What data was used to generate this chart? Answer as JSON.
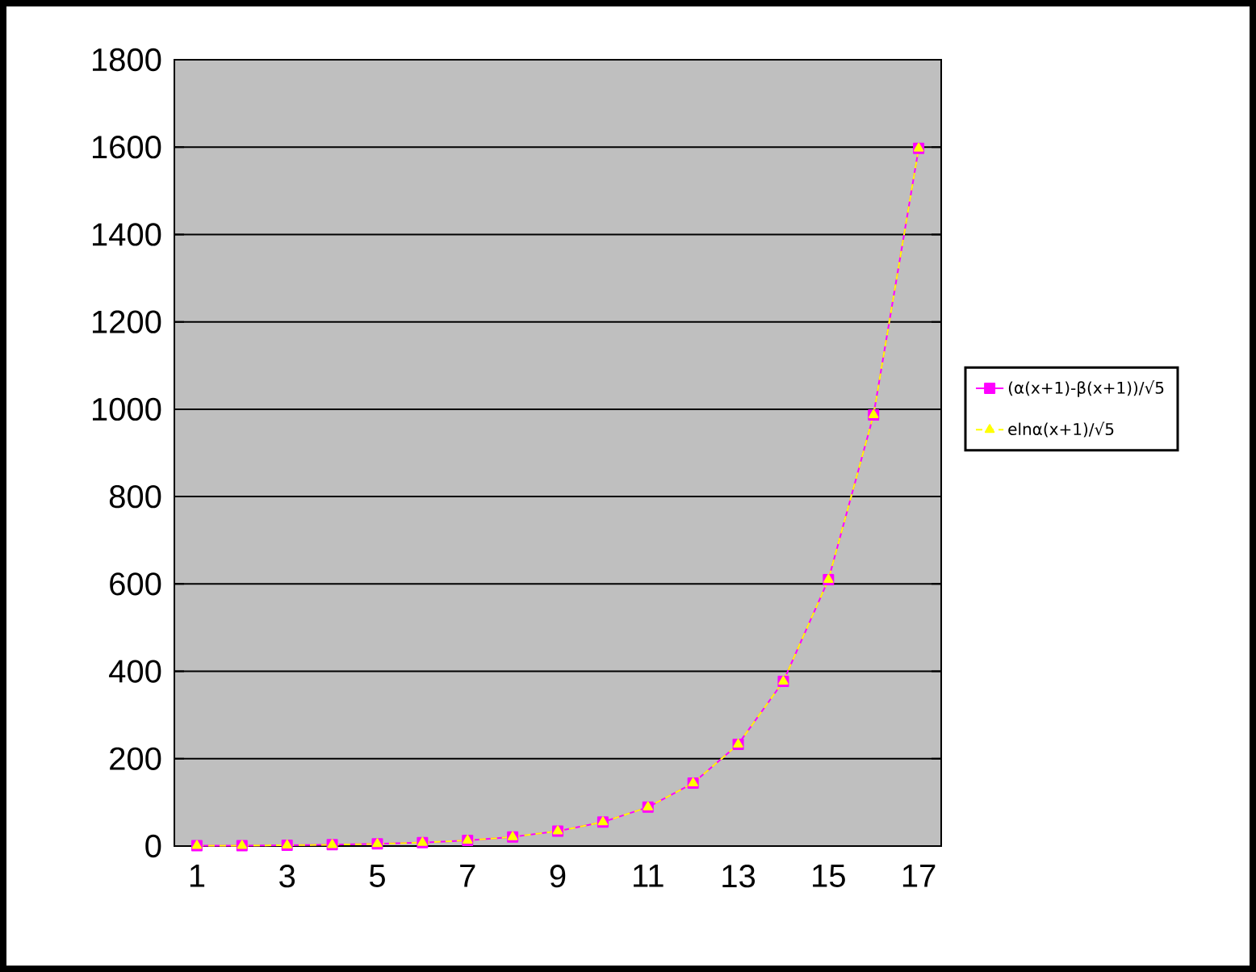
{
  "chart_data": {
    "type": "line",
    "categories": [
      "1",
      null,
      "3",
      null,
      "5",
      null,
      "7",
      null,
      "9",
      null,
      "11",
      null,
      "13",
      null,
      "15",
      null,
      "17"
    ],
    "series": [
      {
        "name": "(α(x+1)-β(x+1))/√5",
        "color": "#ff00ff",
        "marker": "square",
        "line_style": "solid",
        "values": [
          1,
          1,
          2,
          3,
          5,
          8,
          13,
          21,
          34,
          55,
          89,
          144,
          233,
          377,
          610,
          987,
          1597
        ]
      },
      {
        "name": "elnα(x+1)/√5",
        "color": "#ffff00",
        "marker": "triangle",
        "line_style": "dashed",
        "values": [
          1,
          1,
          2,
          3,
          5,
          8,
          13,
          21,
          34,
          55,
          89,
          144,
          233,
          377,
          610,
          987,
          1597
        ]
      }
    ],
    "ylim": [
      0,
      1800
    ],
    "yticks": [
      0,
      200,
      400,
      600,
      800,
      1000,
      1200,
      1400,
      1600,
      1800
    ],
    "grid": "y",
    "legend": "right"
  }
}
